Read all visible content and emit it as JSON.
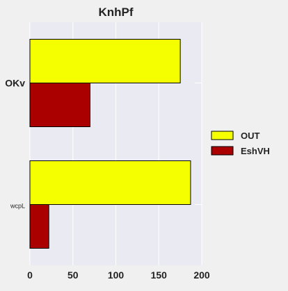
{
  "chart_data": {
    "type": "bar",
    "orientation": "horizontal",
    "title": "KnhPf",
    "xlabel": "",
    "ylabel": "",
    "categories": [
      "OKv",
      "wcpL"
    ],
    "series": [
      {
        "name": "OUT",
        "values": [
          175,
          187
        ],
        "color": "#f5ff00"
      },
      {
        "name": "EshVH",
        "values": [
          70,
          22
        ],
        "color": "#aa0000"
      }
    ],
    "xlim": [
      0,
      200
    ],
    "xticks": [
      0,
      50,
      100,
      150,
      200
    ],
    "grid": true,
    "legend_position": "right"
  },
  "colors": {
    "background": "#f0f0f0",
    "plot_background": "#eaeaf2",
    "grid": "#ffffff",
    "bar_edge": "#000000"
  }
}
